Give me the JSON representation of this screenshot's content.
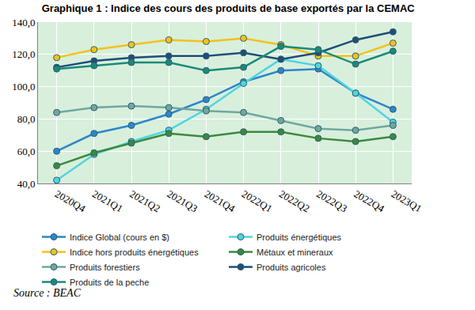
{
  "chart_data": {
    "type": "line",
    "title": "Graphique 1 : Indice des cours des produits de base exportés par la CEMAC",
    "source": "Source : BEAC",
    "categories": [
      "2020Q4",
      "2021Q1",
      "2021Q2",
      "2021Q3",
      "2021Q4",
      "2022Q1",
      "2022Q2",
      "2022Q3",
      "2022Q4",
      "2023Q1"
    ],
    "ylim": [
      40,
      140
    ],
    "yticks": [
      {
        "value": 40,
        "label": "40,0"
      },
      {
        "value": 60,
        "label": "60,0"
      },
      {
        "value": 80,
        "label": "80,0"
      },
      {
        "value": 100,
        "label": "100,0"
      },
      {
        "value": 120,
        "label": "120,0"
      },
      {
        "value": 140,
        "label": "140,0"
      }
    ],
    "grid": true,
    "legend": "bottom",
    "marker": "circle",
    "series": [
      {
        "name": "Indice Global (cours en $)",
        "color": "#2e86c9",
        "values": [
          60,
          71,
          76,
          83,
          92,
          103,
          110,
          111,
          96,
          86
        ]
      },
      {
        "name": "Produits énergétiques",
        "color": "#4fd4e0",
        "values": [
          42,
          58,
          66,
          73,
          86,
          102,
          117,
          113,
          96,
          78
        ]
      },
      {
        "name": "Indice hors produits énergétiques",
        "color": "#f2c21b",
        "values": [
          118,
          123,
          126,
          129,
          128,
          130,
          126,
          119,
          119,
          127
        ]
      },
      {
        "name": "Métaux et mineraux",
        "color": "#3a8a3e",
        "values": [
          51,
          59,
          65,
          71,
          69,
          72,
          72,
          68,
          66,
          69
        ]
      },
      {
        "name": "Produits forestiers",
        "color": "#6fa8a0",
        "values": [
          84,
          87,
          88,
          87,
          85,
          84,
          79,
          74,
          73,
          76
        ]
      },
      {
        "name": "Produits agricoles",
        "color": "#1f4e79",
        "values": [
          112,
          116,
          118,
          119,
          119,
          121,
          117,
          121,
          129,
          134
        ]
      },
      {
        "name": "Produits de la peche",
        "color": "#1a8a78",
        "values": [
          111,
          113,
          115,
          115,
          110,
          112,
          125,
          123,
          114,
          122
        ]
      }
    ]
  }
}
